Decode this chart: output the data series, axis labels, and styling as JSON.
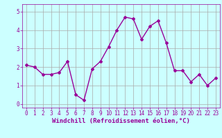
{
  "x": [
    0,
    1,
    2,
    3,
    4,
    5,
    6,
    7,
    8,
    9,
    10,
    11,
    12,
    13,
    14,
    15,
    16,
    17,
    18,
    19,
    20,
    21,
    22,
    23
  ],
  "y": [
    2.1,
    2.0,
    1.6,
    1.6,
    1.7,
    2.3,
    0.5,
    0.2,
    1.9,
    2.3,
    3.1,
    4.0,
    4.7,
    4.6,
    3.5,
    4.2,
    4.5,
    3.3,
    1.8,
    1.8,
    1.2,
    1.6,
    1.0,
    1.4
  ],
  "line_color": "#990099",
  "marker": "D",
  "marker_size": 2,
  "bg_color": "#ccffff",
  "grid_color": "#aaaaaa",
  "xlabel": "Windchill (Refroidissement éolien,°C)",
  "xlim": [
    -0.5,
    23.5
  ],
  "ylim": [
    -0.2,
    5.4
  ],
  "yticks": [
    0,
    1,
    2,
    3,
    4,
    5
  ],
  "xticks": [
    0,
    1,
    2,
    3,
    4,
    5,
    6,
    7,
    8,
    9,
    10,
    11,
    12,
    13,
    14,
    15,
    16,
    17,
    18,
    19,
    20,
    21,
    22,
    23
  ],
  "tick_color": "#990099",
  "label_color": "#990099",
  "font_family": "monospace",
  "xlabel_fontsize": 6.5,
  "tick_fontsize": 5.5,
  "line_width": 1.0
}
